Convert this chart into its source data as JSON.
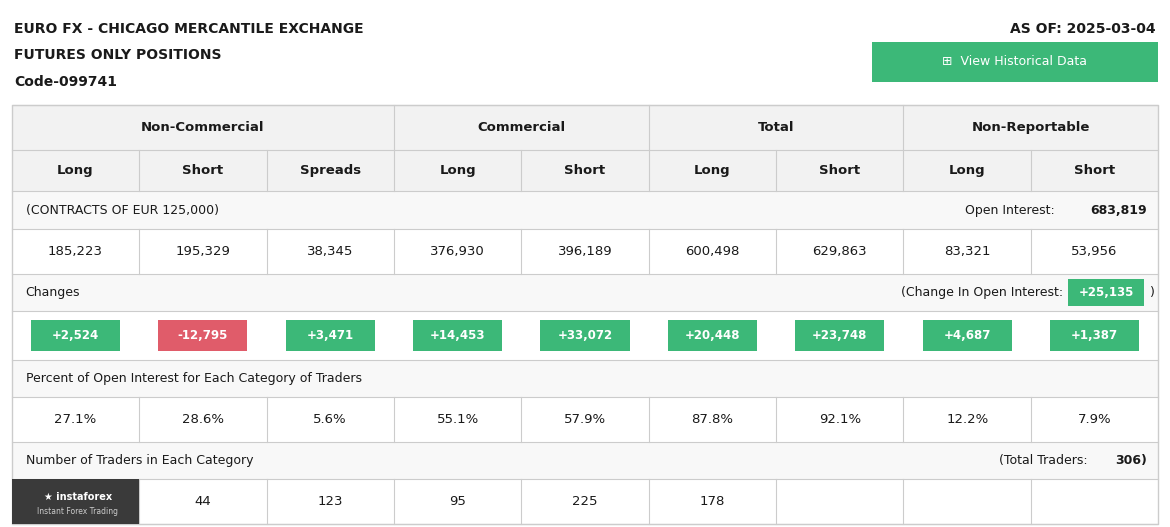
{
  "title_line1": "EURO FX - CHICAGO MERCANTILE EXCHANGE",
  "title_line2": "FUTURES ONLY POSITIONS",
  "title_line3": "Code-099741",
  "as_of": "AS OF: 2025-03-04",
  "view_historical": "View Historical Data",
  "header1_label": "Non-Commercial",
  "header2_label": "Commercial",
  "header3_label": "Total",
  "header4_label": "Non-Reportable",
  "col_headers": [
    "Long",
    "Short",
    "Spreads",
    "Long",
    "Short",
    "Long",
    "Short",
    "Long",
    "Short"
  ],
  "contracts_label": "(CONTRACTS OF EUR 125,000)",
  "open_interest_label": "Open Interest:",
  "open_interest_value": "683,819",
  "main_values": [
    "185,223",
    "195,329",
    "38,345",
    "376,930",
    "396,189",
    "600,498",
    "629,863",
    "83,321",
    "53,956"
  ],
  "changes_label": "Changes",
  "change_oi_label": "(Change In Open Interest:",
  "change_oi_value": "+25,135",
  "change_values": [
    "+2,524",
    "-12,795",
    "+3,471",
    "+14,453",
    "+33,072",
    "+20,448",
    "+23,748",
    "+4,687",
    "+1,387"
  ],
  "change_colors": [
    "#3cb878",
    "#e05c6a",
    "#3cb878",
    "#3cb878",
    "#3cb878",
    "#3cb878",
    "#3cb878",
    "#3cb878",
    "#3cb878"
  ],
  "pct_label": "Percent of Open Interest for Each Category of Traders",
  "pct_values": [
    "27.1%",
    "28.6%",
    "5.6%",
    "55.1%",
    "57.9%",
    "87.8%",
    "92.1%",
    "12.2%",
    "7.9%"
  ],
  "traders_label": "Number of Traders in Each Category",
  "total_traders_label": "(Total Traders:",
  "total_traders_value": "306",
  "trader_vals": [
    "",
    "44",
    "123",
    "95",
    "225",
    "178",
    "",
    "",
    ""
  ],
  "bg_color": "#ffffff",
  "header_bg": "#f2f2f2",
  "row_alt_bg": "#f8f8f8",
  "border_color": "#cccccc",
  "green_color": "#3cb878",
  "text_dark": "#1a1a1a",
  "instaforex_bg": "#3a3a3a"
}
